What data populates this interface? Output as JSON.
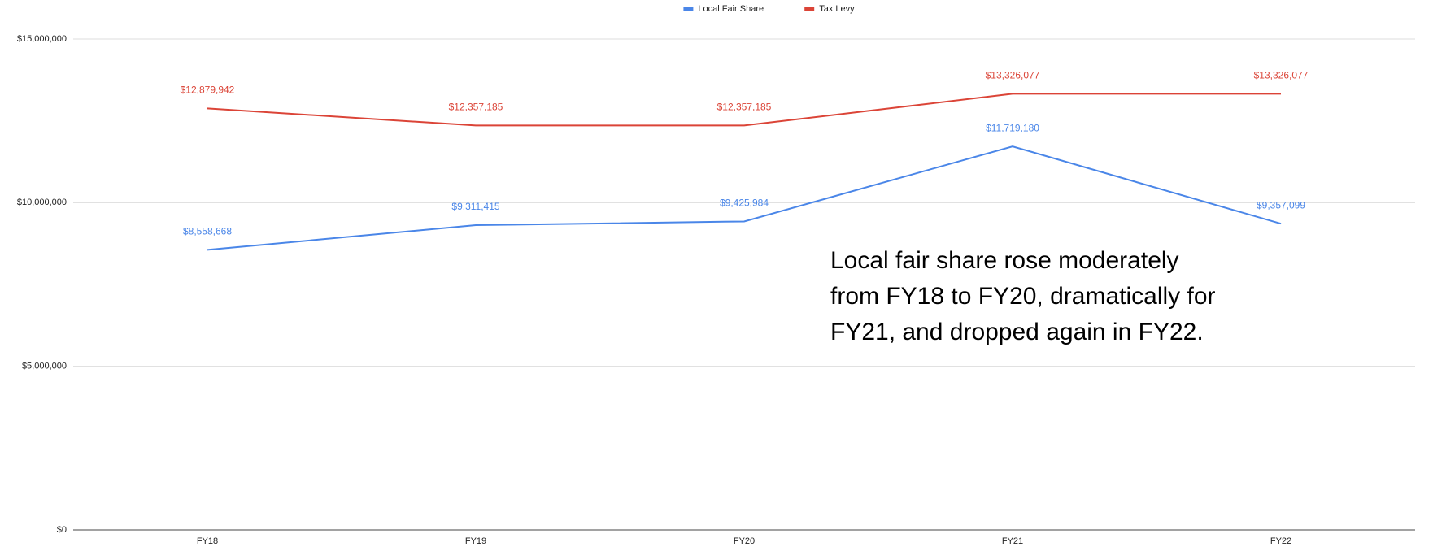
{
  "chart_data": {
    "type": "line",
    "categories": [
      "FY18",
      "FY19",
      "FY20",
      "FY21",
      "FY22"
    ],
    "series": [
      {
        "name": "Local Fair Share",
        "color": "#4a86e8",
        "values": [
          8558668,
          9311415,
          9425984,
          11719180,
          9357099
        ],
        "value_labels": [
          "$8,558,668",
          "$9,311,415",
          "$9,425,984",
          "$11,719,180",
          "$9,357,099"
        ]
      },
      {
        "name": "Tax Levy",
        "color": "#db4437",
        "values": [
          12879942,
          12357185,
          12357185,
          13326077,
          13326077
        ],
        "value_labels": [
          "$12,879,942",
          "$12,357,185",
          "$12,357,185",
          "$13,326,077",
          "$13,326,077"
        ]
      }
    ],
    "ylim": [
      0,
      15000000
    ],
    "yticks": [
      {
        "value": 0,
        "label": "$0"
      },
      {
        "value": 5000000,
        "label": "$5,000,000"
      },
      {
        "value": 10000000,
        "label": "$10,000,000"
      },
      {
        "value": 15000000,
        "label": "$15,000,000"
      }
    ],
    "grid": true,
    "legend": "top",
    "annotation": [
      "Local fair share rose moderately",
      "from FY18 to FY20, dramatically for",
      "FY21, and dropped again in FY22."
    ]
  }
}
